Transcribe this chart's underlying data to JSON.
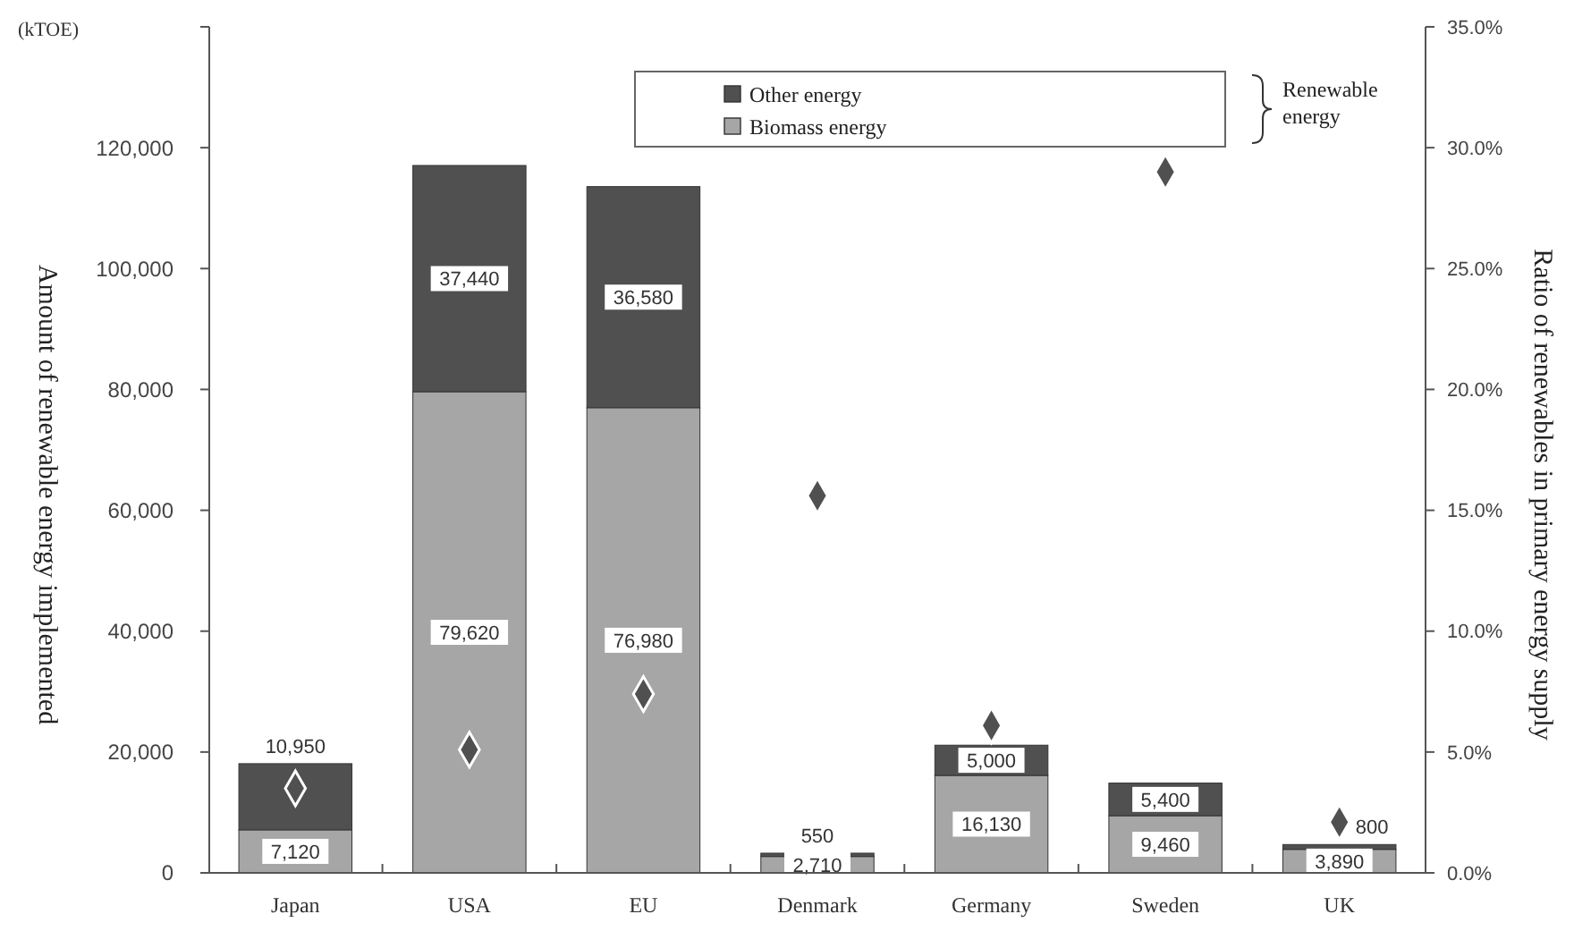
{
  "chart_data": {
    "type": "bar",
    "stacked": true,
    "ylabel": "Amount of renewable energy implemented",
    "y2label": "Ratio of renewables in primary energy supply",
    "legend_title": "Renewable energy",
    "annotations": [
      "(kTOE)"
    ],
    "categories": [
      "Japan",
      "USA",
      "EU",
      "Denmark",
      "Germany",
      "Sweden",
      "UK"
    ],
    "series": [
      {
        "name": "Biomass energy",
        "color": "#a6a6a6",
        "values": [
          7120,
          79620,
          76980,
          2710,
          16130,
          9460,
          3890
        ],
        "value_labels": [
          "7,120",
          "79,620",
          "76,980",
          "2,710",
          "16,130",
          "9,460",
          "3,890"
        ]
      },
      {
        "name": "Other energy",
        "color": "#505050",
        "values": [
          10950,
          37440,
          36580,
          550,
          5000,
          5400,
          800
        ],
        "value_labels": [
          "10,950",
          "37,440",
          "36,580",
          "550",
          "5,000",
          "5,400",
          "800"
        ]
      },
      {
        "type": "scatter",
        "axis": "y2",
        "marker": "diamond",
        "color": "#505050",
        "values": [
          3.5,
          5.1,
          7.4,
          15.6,
          6.1,
          29.0,
          2.1
        ]
      }
    ],
    "ylim": [
      0,
      140000
    ],
    "yticks": [
      0,
      {
        "value": 20000,
        "label": "20,000"
      },
      {
        "value": 40000,
        "label": "40,000"
      },
      {
        "value": 60000,
        "label": "60,000"
      },
      {
        "value": 80000,
        "label": "80,000"
      },
      {
        "value": 100000,
        "label": "100,000"
      },
      {
        "value": 120000,
        "label": "120,000"
      }
    ],
    "y2lim": [
      0,
      35
    ],
    "y2ticks": [
      {
        "value": 0,
        "label": "0.0%"
      },
      {
        "value": 5,
        "label": "5.0%"
      },
      {
        "value": 10,
        "label": "10.0%"
      },
      {
        "value": 15,
        "label": "15.0%"
      },
      {
        "value": 20,
        "label": "20.0%"
      },
      {
        "value": 25,
        "label": "25.0%"
      },
      {
        "value": 30,
        "label": "30.0%"
      },
      {
        "value": 35,
        "label": "35.0%"
      }
    ],
    "grid": false,
    "legend": "top"
  }
}
